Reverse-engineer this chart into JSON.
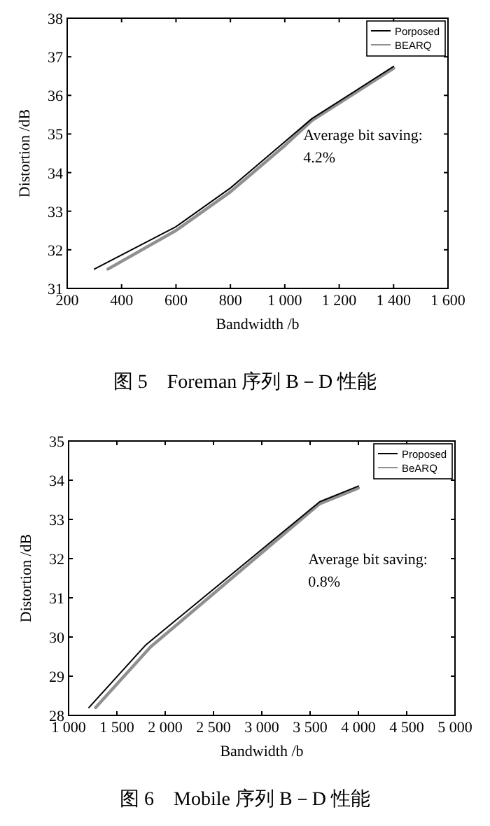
{
  "chart_data": [
    {
      "type": "line",
      "title": "图 5　Foreman 序列 B－D 性能",
      "xlabel": "Bandwidth /b",
      "ylabel": "Distortion /dB",
      "annotations": [
        "Average bit saving:",
        "4.2%"
      ],
      "series": [
        {
          "name": "Porposed",
          "color": "#000000",
          "x": [
            300,
            600,
            800,
            1000,
            1100,
            1400
          ],
          "values": [
            31.5,
            32.6,
            33.6,
            34.8,
            35.4,
            36.75
          ]
        },
        {
          "name": "BEARQ",
          "color": "#909090",
          "x": [
            350,
            600,
            800,
            1000,
            1100,
            1400
          ],
          "values": [
            31.5,
            32.5,
            33.5,
            34.7,
            35.35,
            36.7
          ]
        }
      ],
      "xlim": [
        200,
        1600
      ],
      "ylim": [
        31,
        38
      ],
      "xticks": [
        200,
        400,
        600,
        800,
        {
          "value": 1000,
          "label": "1 000"
        },
        {
          "value": 1200,
          "label": "1 200"
        },
        {
          "value": 1400,
          "label": "1 400"
        },
        {
          "value": 1600,
          "label": "1 600"
        }
      ],
      "yticks": [
        31,
        32,
        33,
        34,
        35,
        36,
        37,
        38
      ],
      "legend": "top right",
      "grid": false,
      "line_style": "solid",
      "marker": "none"
    },
    {
      "type": "line",
      "title": "图 6　Mobile 序列 B－D 性能",
      "xlabel": "Bandwidth /b",
      "ylabel": "Distortion /dB",
      "annotations": [
        "Average bit saving:",
        "0.8%"
      ],
      "series": [
        {
          "name": "Proposed",
          "color": "#000000",
          "x": [
            1210,
            1800,
            3600,
            4000
          ],
          "values": [
            28.2,
            29.8,
            33.45,
            33.85
          ]
        },
        {
          "name": "BeARQ",
          "color": "#909090",
          "x": [
            1280,
            1850,
            3600,
            4000
          ],
          "values": [
            28.2,
            29.75,
            33.4,
            33.8
          ]
        }
      ],
      "xlim": [
        1000,
        5000
      ],
      "ylim": [
        28,
        35
      ],
      "xticks": [
        {
          "value": 1000,
          "label": "1 000"
        },
        {
          "value": 1500,
          "label": "1 500"
        },
        {
          "value": 2000,
          "label": "2 000"
        },
        {
          "value": 2500,
          "label": "2 500"
        },
        {
          "value": 3000,
          "label": "3 000"
        },
        {
          "value": 3500,
          "label": "3 500"
        },
        {
          "value": 4000,
          "label": "4 000"
        },
        {
          "value": 4500,
          "label": "4 500"
        },
        {
          "value": 5000,
          "label": "5 000"
        }
      ],
      "yticks": [
        28,
        29,
        30,
        31,
        32,
        33,
        34,
        35
      ],
      "legend": "top right",
      "grid": false,
      "line_style": "solid",
      "marker": "none"
    }
  ]
}
